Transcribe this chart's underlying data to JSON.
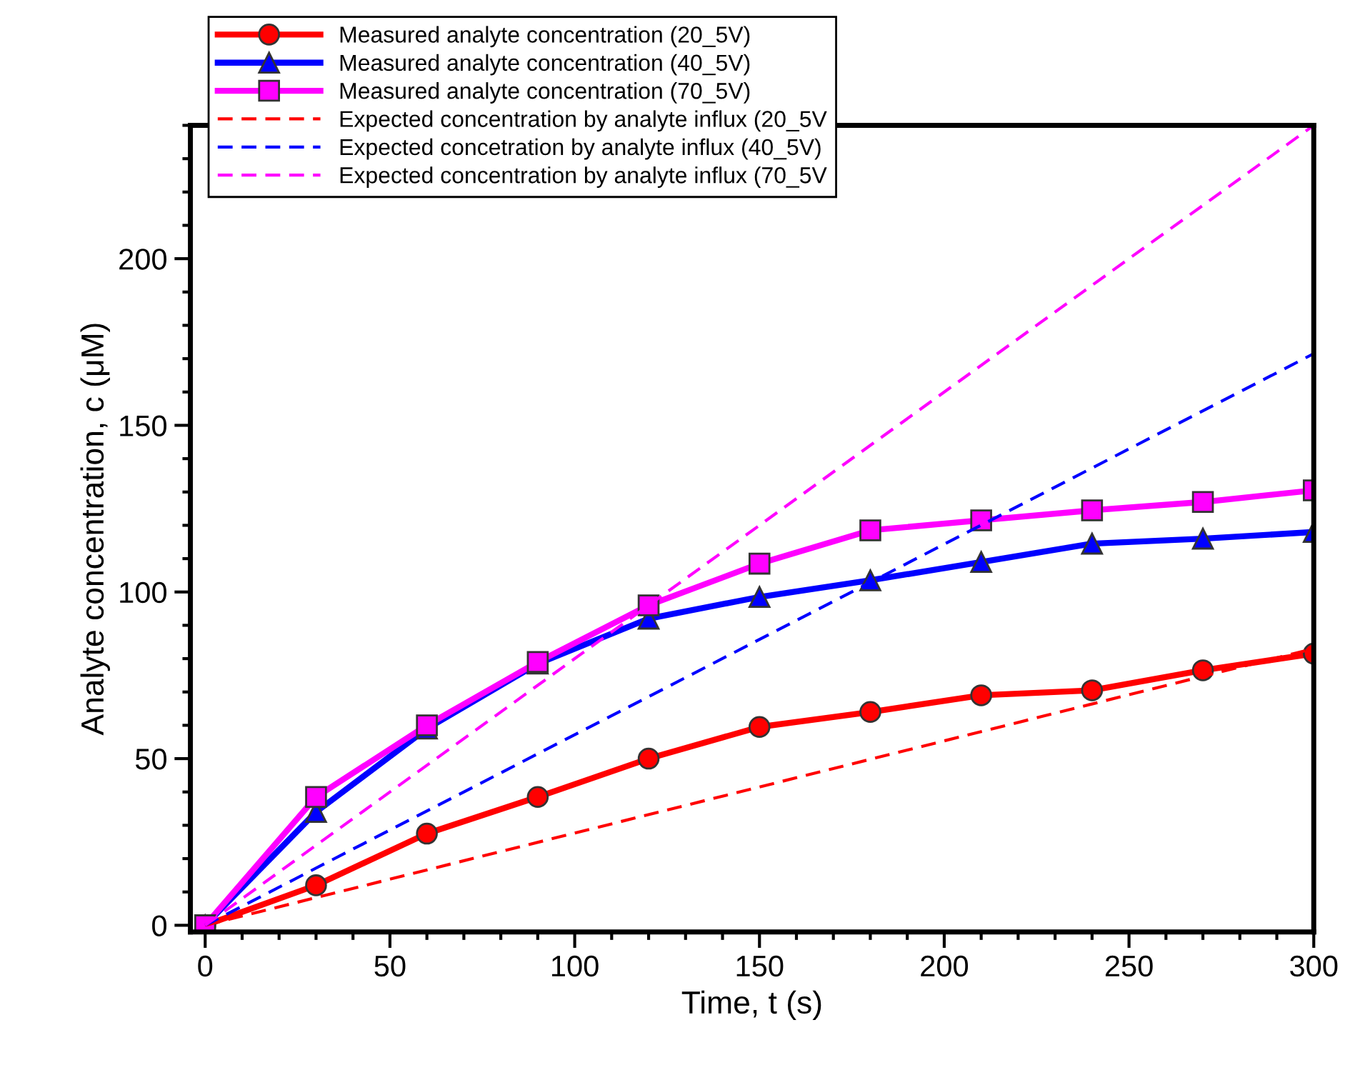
{
  "chart_data": {
    "type": "line",
    "xlabel": "Time, t (s)",
    "ylabel": "Analyte concentration, c (μM)",
    "xlim": [
      -4,
      300
    ],
    "ylim": [
      -2,
      240
    ],
    "xticks": [
      0,
      50,
      100,
      150,
      200,
      250,
      300
    ],
    "yticks": [
      0,
      50,
      100,
      150,
      200
    ],
    "grid": false,
    "legend": "top left",
    "series": [
      {
        "name": "Measured analyte concentration (20_5V)",
        "color": "#ff0000",
        "marker": "circle",
        "line_style": "solid",
        "x": [
          0,
          30,
          60,
          90,
          120,
          150,
          180,
          210,
          240,
          270,
          300
        ],
        "values": [
          0,
          12,
          27.5,
          38.5,
          50,
          59.5,
          64,
          69,
          70.5,
          76.5,
          81.5
        ]
      },
      {
        "name": "Measured analyte concentration (40_5V)",
        "color": "#0000ff",
        "marker": "triangle",
        "line_style": "solid",
        "x": [
          0,
          30,
          60,
          90,
          120,
          150,
          180,
          210,
          240,
          270,
          300
        ],
        "values": [
          0,
          34,
          59,
          78.5,
          92,
          98.5,
          103.5,
          109,
          114.5,
          116,
          118
        ]
      },
      {
        "name": "Measured analyte concentration (70_5V)",
        "color": "#ff00ff",
        "marker": "square",
        "line_style": "solid",
        "x": [
          0,
          30,
          60,
          90,
          120,
          150,
          180,
          210,
          240,
          270,
          300
        ],
        "values": [
          0,
          38.5,
          60,
          79,
          96,
          108.5,
          118.5,
          121.5,
          124.5,
          127,
          130.5
        ]
      },
      {
        "name": "Expected concentration by analyte influx (20_5V",
        "color": "#ff0000",
        "marker": "none",
        "line_style": "dashed",
        "x": [
          0,
          300
        ],
        "values": [
          0,
          83
        ]
      },
      {
        "name": "Expected concetration by analyte influx (40_5V)",
        "color": "#0000ff",
        "marker": "none",
        "line_style": "dashed",
        "x": [
          0,
          300
        ],
        "values": [
          0,
          171.5
        ]
      },
      {
        "name": "Expected concentration by analyte influx (70_5V",
        "color": "#ff00ff",
        "marker": "none",
        "line_style": "dashed",
        "x": [
          0,
          300
        ],
        "values": [
          0,
          240
        ]
      }
    ]
  }
}
